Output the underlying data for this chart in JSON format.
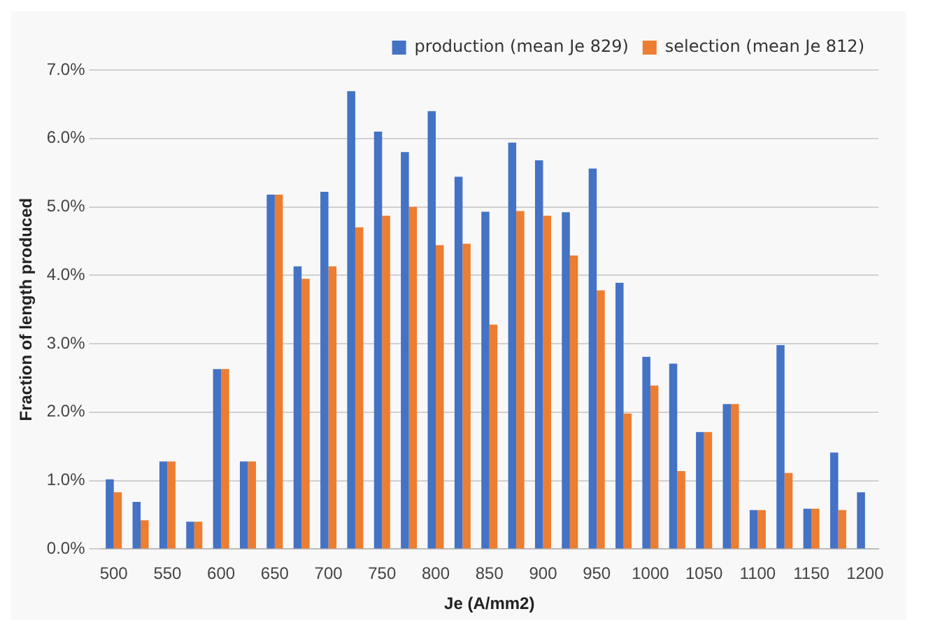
{
  "chart_data": {
    "type": "bar",
    "xlabel": "Je (A/mm2)",
    "ylabel": "Fraction of length produced",
    "categories": [
      "500",
      null,
      "550",
      null,
      "600",
      null,
      "650",
      null,
      "700",
      null,
      "750",
      null,
      "800",
      null,
      "850",
      null,
      "900",
      null,
      "950",
      null,
      "1000",
      null,
      "1050",
      null,
      "1100",
      null,
      "1150",
      null,
      "1200"
    ],
    "series": [
      {
        "name": "production (mean Je 829)",
        "color": "#4472c4",
        "values": [
          1.02,
          0.69,
          1.28,
          0.4,
          2.63,
          1.28,
          5.18,
          4.13,
          5.22,
          6.69,
          6.1,
          5.8,
          6.4,
          5.44,
          4.93,
          5.94,
          5.68,
          4.92,
          5.56,
          3.89,
          2.81,
          2.71,
          1.71,
          2.12,
          0.57,
          2.98,
          0.59,
          1.41,
          0.83
        ]
      },
      {
        "name": "selection (mean Je 812)",
        "color": "#ed7d31",
        "values": [
          0.83,
          0.42,
          1.28,
          0.4,
          2.63,
          1.28,
          5.18,
          3.95,
          4.13,
          4.7,
          4.87,
          5.0,
          4.44,
          4.46,
          3.28,
          4.94,
          4.87,
          4.29,
          3.78,
          1.98,
          2.39,
          1.14,
          1.71,
          2.12,
          0.57,
          1.11,
          0.59,
          0.57,
          null
        ]
      }
    ],
    "ylim": [
      0,
      7
    ],
    "yticks": [
      {
        "value": 0,
        "label": "0.0%"
      },
      {
        "value": 1,
        "label": "1.0%"
      },
      {
        "value": 2,
        "label": "2.0%"
      },
      {
        "value": 3,
        "label": "3.0%"
      },
      {
        "value": 4,
        "label": "4.0%"
      },
      {
        "value": 5,
        "label": "5.0%"
      },
      {
        "value": 6,
        "label": "6.0%"
      },
      {
        "value": 7,
        "label": "7.0%"
      }
    ],
    "grid": "y",
    "legend": "top right"
  }
}
